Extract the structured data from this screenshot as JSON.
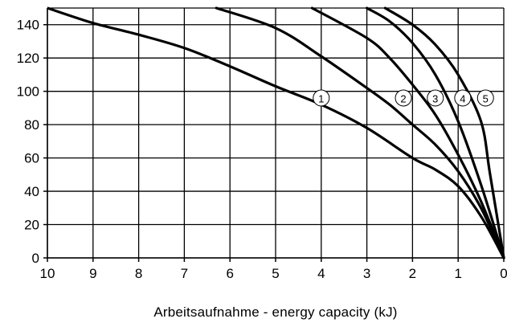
{
  "chart_data": {
    "type": "line",
    "title": "",
    "xlabel": "Arbeitsaufnahme - energy capacity (kJ)",
    "ylabel": "",
    "xlim": [
      10,
      0
    ],
    "ylim": [
      0,
      150
    ],
    "x_reversed": true,
    "x_ticks": [
      10,
      9,
      8,
      7,
      6,
      5,
      4,
      3,
      2,
      1,
      0
    ],
    "y_ticks": [
      0,
      20,
      40,
      60,
      80,
      100,
      120,
      140
    ],
    "x_tick_labels": [
      "10",
      "9",
      "8",
      "7",
      "6",
      "5",
      "4",
      "3",
      "2",
      "1",
      "0"
    ],
    "y_tick_labels": [
      "0",
      "20",
      "40",
      "60",
      "80",
      "100",
      "120",
      "140"
    ],
    "grid": true,
    "legend": "none",
    "series": [
      {
        "marker_label": "1",
        "marker_at": [
          4.0,
          96
        ],
        "points": [
          [
            10.0,
            150
          ],
          [
            9.0,
            141
          ],
          [
            8.0,
            134
          ],
          [
            7.0,
            126
          ],
          [
            6.0,
            115
          ],
          [
            5.0,
            103
          ],
          [
            4.0,
            92
          ],
          [
            3.0,
            78
          ],
          [
            2.0,
            60
          ],
          [
            1.5,
            53
          ],
          [
            1.0,
            43
          ],
          [
            0.5,
            25
          ],
          [
            0.0,
            0
          ]
        ]
      },
      {
        "marker_label": "2",
        "marker_at": [
          2.2,
          96
        ],
        "points": [
          [
            6.3,
            150
          ],
          [
            5.0,
            138
          ],
          [
            4.0,
            121
          ],
          [
            3.0,
            102
          ],
          [
            2.5,
            92
          ],
          [
            2.0,
            80
          ],
          [
            1.5,
            68
          ],
          [
            1.0,
            52
          ],
          [
            0.5,
            30
          ],
          [
            0.0,
            0
          ]
        ]
      },
      {
        "marker_label": "3",
        "marker_at": [
          1.5,
          96
        ],
        "points": [
          [
            4.2,
            150
          ],
          [
            3.0,
            132
          ],
          [
            2.5,
            120
          ],
          [
            2.0,
            104
          ],
          [
            1.5,
            86
          ],
          [
            1.0,
            62
          ],
          [
            0.5,
            34
          ],
          [
            0.0,
            0
          ]
        ]
      },
      {
        "marker_label": "4",
        "marker_at": [
          0.9,
          96
        ],
        "points": [
          [
            3.0,
            150
          ],
          [
            2.5,
            142
          ],
          [
            2.0,
            129
          ],
          [
            1.5,
            110
          ],
          [
            1.0,
            82
          ],
          [
            0.5,
            44
          ],
          [
            0.0,
            0
          ]
        ]
      },
      {
        "marker_label": "5",
        "marker_at": [
          0.4,
          96
        ],
        "points": [
          [
            2.6,
            150
          ],
          [
            2.0,
            140
          ],
          [
            1.5,
            128
          ],
          [
            1.0,
            110
          ],
          [
            0.5,
            82
          ],
          [
            0.3,
            50
          ],
          [
            0.0,
            0
          ]
        ]
      }
    ]
  }
}
